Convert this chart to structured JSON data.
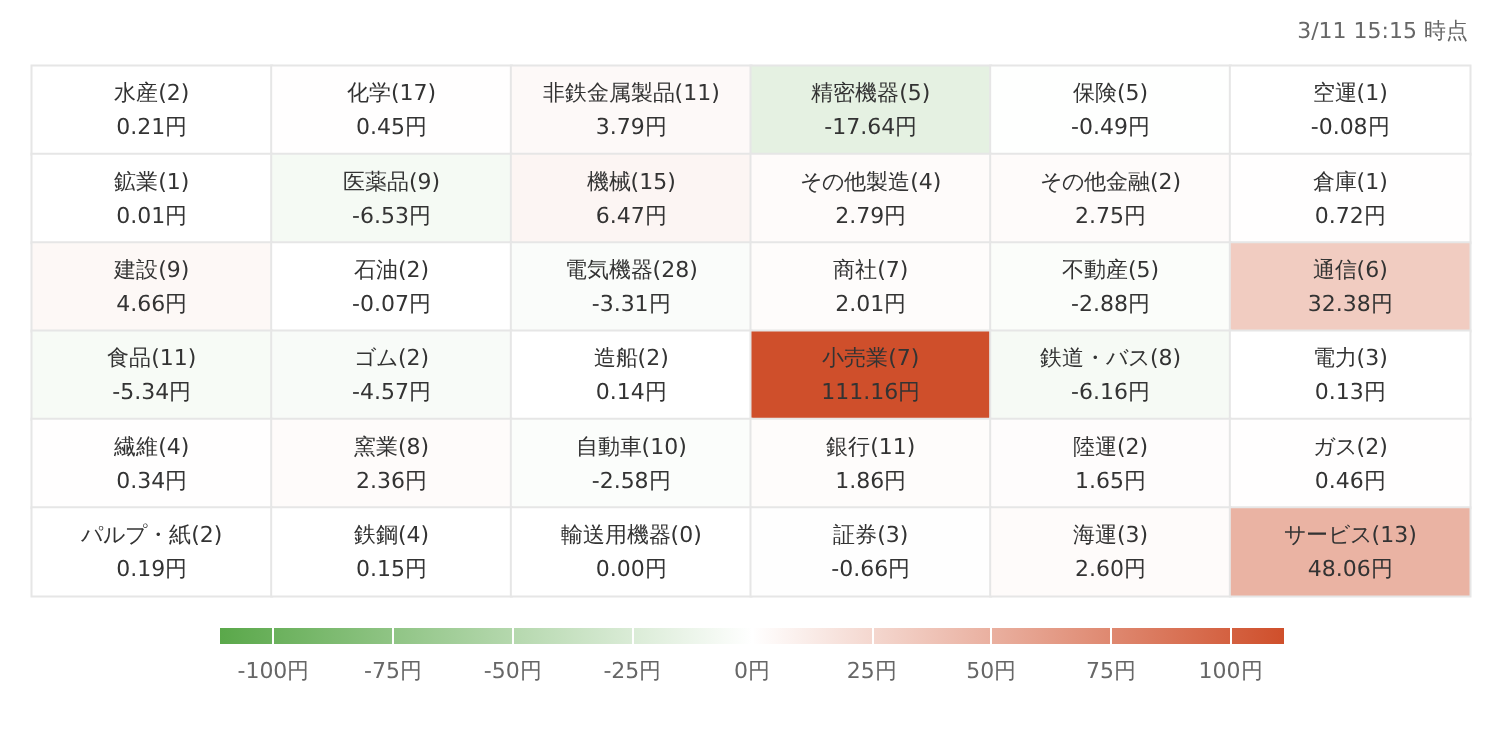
{
  "chart_data": {
    "type": "heatmap",
    "annotations": [
      "3/11 15:15 時点"
    ],
    "categories": [
      null,
      null,
      null,
      null,
      null,
      null
    ],
    "y_categories": [
      null,
      null,
      null,
      null,
      null,
      null
    ],
    "cells": [
      [
        0.21,
        0.45,
        3.79,
        -17.64,
        -0.49,
        -0.08
      ],
      [
        0.01,
        -6.53,
        6.47,
        2.79,
        2.75,
        0.72
      ],
      [
        4.66,
        -0.07,
        -3.31,
        2.01,
        -2.88,
        32.38
      ],
      [
        -5.34,
        -4.57,
        0.14,
        111.16,
        -6.16,
        0.13
      ],
      [
        0.34,
        2.36,
        -2.58,
        1.86,
        1.65,
        0.46
      ],
      [
        0.19,
        0.15,
        0.0,
        -0.66,
        2.6,
        48.06
      ]
    ],
    "cell_labels": [
      [
        "水産(2)\n0.21円",
        "化学(17)\n0.45円",
        "非鉄金属製品(11)\n3.79円",
        "精密機器(5)\n-17.64円",
        "保険(5)\n-0.49円",
        "空運(1)\n-0.08円"
      ],
      [
        "鉱業(1)\n0.01円",
        "医薬品(9)\n-6.53円",
        "機械(15)\n6.47円",
        "その他製造(4)\n2.79円",
        "その他金融(2)\n2.75円",
        "倉庫(1)\n0.72円"
      ],
      [
        "建設(9)\n4.66円",
        "石油(2)\n-0.07円",
        "電気機器(28)\n-3.31円",
        "商社(7)\n2.01円",
        "不動産(5)\n-2.88円",
        "通信(6)\n32.38円"
      ],
      [
        "食品(11)\n-5.34円",
        "ゴム(2)\n-4.57円",
        "造船(2)\n0.14円",
        "小売業(7)\n111.16円",
        "鉄道・バス(8)\n-6.16円",
        "電力(3)\n0.13円"
      ],
      [
        "繊維(4)\n0.34円",
        "窯業(8)\n2.36円",
        "自動車(10)\n-2.58円",
        "銀行(11)\n1.86円",
        "陸運(2)\n1.65円",
        "ガス(2)\n0.46円"
      ],
      [
        "パルプ・紙(2)\n0.19円",
        "鉄鋼(4)\n0.15円",
        "輸送用機器(0)\n0.00円",
        "証券(3)\n-0.66円",
        "海運(3)\n2.60円",
        "サービス(13)\n48.06円"
      ]
    ],
    "clim": [
      -111.16,
      111.16
    ],
    "cticks": [
      {
        "value": -100,
        "label": "-100円"
      },
      {
        "value": -75,
        "label": "-75円"
      },
      {
        "value": -50,
        "label": "-50円"
      },
      {
        "value": -25,
        "label": "-25円"
      },
      {
        "value": 0,
        "label": "0円"
      },
      {
        "value": 25,
        "label": "25円"
      },
      {
        "value": 50,
        "label": "50円"
      },
      {
        "value": 75,
        "label": "75円"
      },
      {
        "value": 100,
        "label": "100円"
      }
    ]
  }
}
